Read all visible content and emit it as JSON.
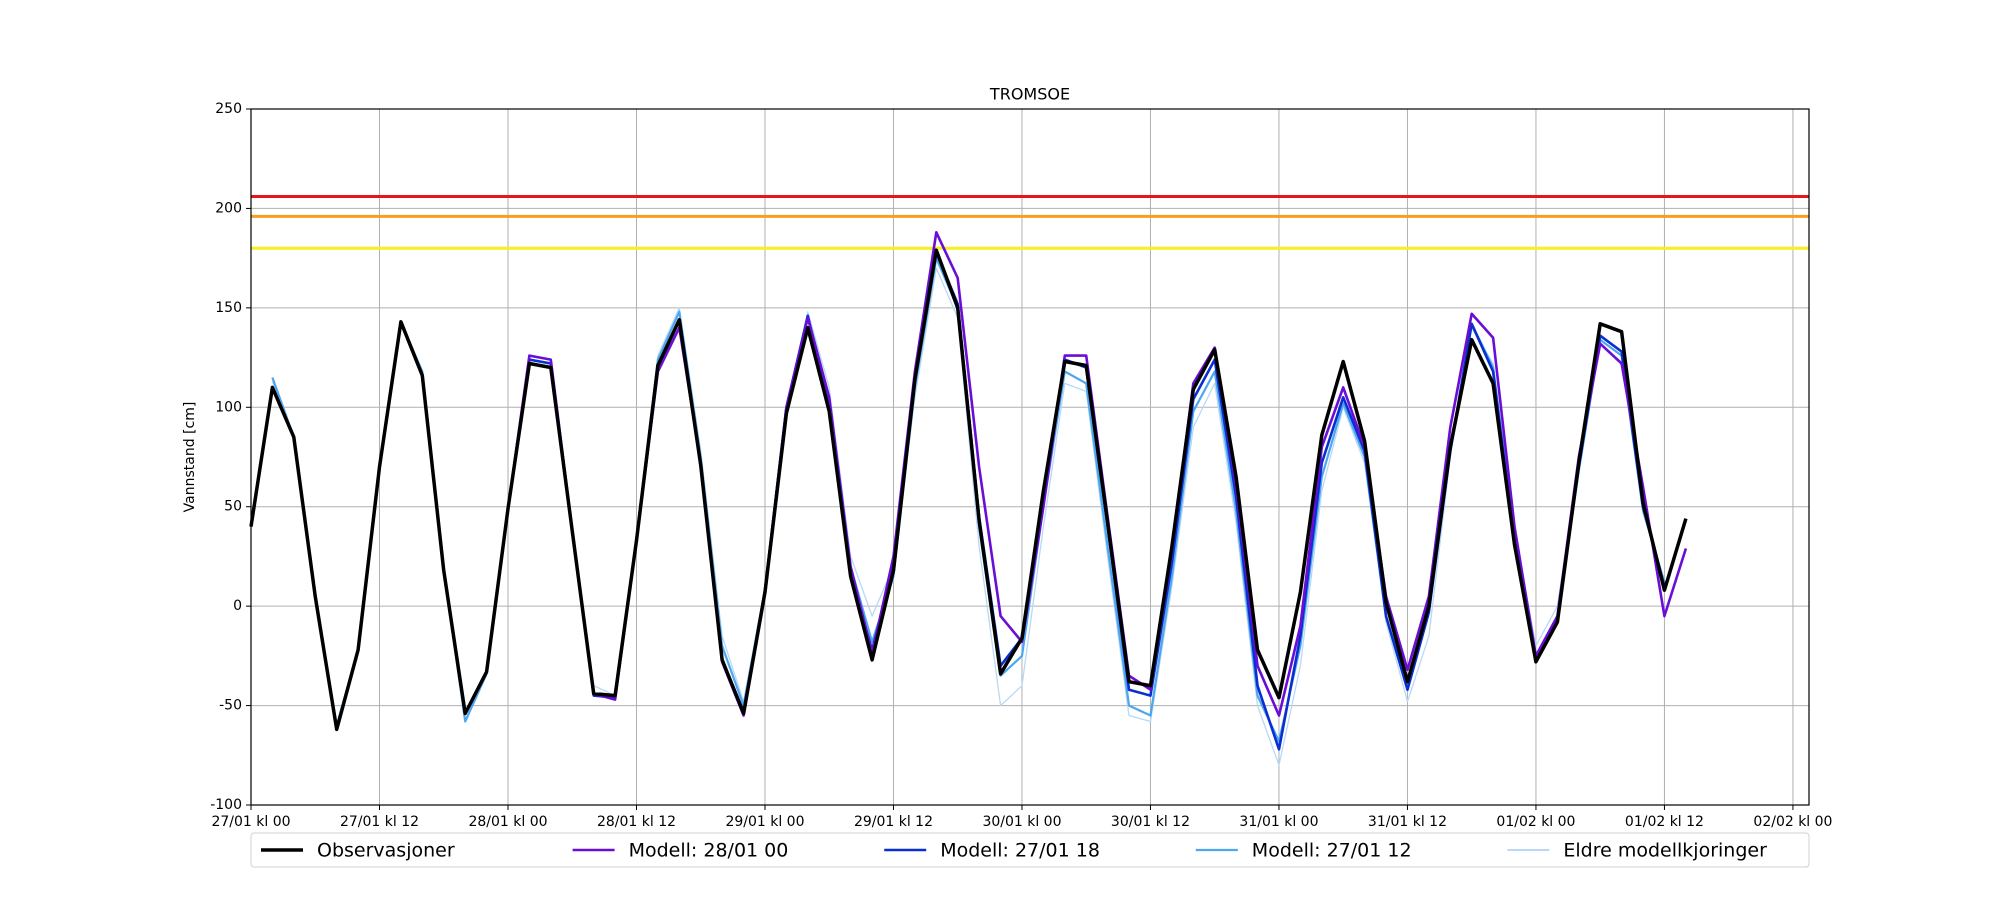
{
  "chart_data": {
    "type": "line",
    "title": "TROMSOE",
    "ylabel": "Vannstand [cm]",
    "x": [
      0,
      2,
      4,
      6,
      8,
      10,
      12,
      14,
      16,
      18,
      20,
      22,
      24,
      26,
      28,
      30,
      32,
      34,
      36,
      38,
      40,
      42,
      44,
      46,
      48,
      50,
      52,
      54,
      56,
      58,
      60,
      62,
      64,
      66,
      68,
      70,
      72,
      74,
      76,
      78,
      80,
      82,
      84,
      86,
      88,
      90,
      92,
      94,
      96,
      98,
      100,
      102,
      104,
      106,
      108,
      110,
      112,
      114,
      116,
      118,
      120,
      122,
      124,
      126,
      128,
      130,
      132,
      134
    ],
    "xlim": [
      0,
      145.5
    ],
    "xticks": [
      {
        "value": 0,
        "label": "27/01 kl 00"
      },
      {
        "value": 12,
        "label": "27/01 kl 12"
      },
      {
        "value": 24,
        "label": "28/01 kl 00"
      },
      {
        "value": 36,
        "label": "28/01 kl 12"
      },
      {
        "value": 48,
        "label": "29/01 kl 00"
      },
      {
        "value": 60,
        "label": "29/01 kl 12"
      },
      {
        "value": 72,
        "label": "30/01 kl 00"
      },
      {
        "value": 84,
        "label": "30/01 kl 12"
      },
      {
        "value": 96,
        "label": "31/01 kl 00"
      },
      {
        "value": 108,
        "label": "31/01 kl 12"
      },
      {
        "value": 120,
        "label": "01/02 kl 00"
      },
      {
        "value": 132,
        "label": "01/02 kl 12"
      },
      {
        "value": 144,
        "label": "02/02 kl 00"
      }
    ],
    "ylim": [
      -100,
      250
    ],
    "yticks": [
      -100,
      -50,
      0,
      50,
      100,
      150,
      200,
      250
    ],
    "grid": true,
    "legend": "bottom",
    "reference_lines": [
      {
        "value": 206,
        "color": "#e8141c"
      },
      {
        "value": 196,
        "color": "#f5a01a"
      },
      {
        "value": 180,
        "color": "#f5f01e"
      }
    ],
    "series": [
      {
        "name": "Observasjoner",
        "color": "#000000",
        "values": [
          40,
          110,
          85,
          5,
          -62,
          -22,
          70,
          143,
          116,
          18,
          -54,
          -33,
          49,
          122,
          120,
          38,
          -44,
          -45,
          33,
          121,
          144,
          71,
          -27,
          -54,
          7,
          97,
          140,
          98,
          15,
          -27,
          18,
          114,
          179,
          150,
          43,
          -34,
          -16,
          58,
          123,
          121,
          42,
          -38,
          -40,
          30,
          109,
          129,
          65,
          -22,
          -46,
          7,
          86,
          123,
          83,
          2,
          -38,
          0,
          80,
          134,
          112,
          31,
          -28,
          -8,
          72,
          142,
          138,
          52,
          8,
          44
        ]
      },
      {
        "name": "Modell: 28/01 00",
        "color": "#6a0dd6",
        "values": [
          null,
          null,
          null,
          null,
          null,
          null,
          null,
          null,
          null,
          null,
          null,
          null,
          49,
          126,
          124,
          38,
          -44,
          -47,
          33,
          118,
          140,
          72,
          -28,
          -55,
          8,
          100,
          145,
          105,
          20,
          -24,
          25,
          118,
          188,
          165,
          70,
          -5,
          -18,
          50,
          126,
          126,
          45,
          -35,
          -42,
          28,
          112,
          130,
          60,
          -30,
          -55,
          -10,
          80,
          110,
          80,
          5,
          -32,
          5,
          90,
          147,
          135,
          40,
          -25,
          -5,
          75,
          132,
          122,
          60,
          -5,
          29
        ]
      },
      {
        "name": "Modell: 27/01 18",
        "color": "#0a2fd0",
        "values": [
          null,
          null,
          null,
          null,
          null,
          null,
          null,
          null,
          null,
          18,
          -54,
          -33,
          49,
          124,
          122,
          38,
          -45,
          -46,
          33,
          120,
          144,
          72,
          -27,
          -53,
          8,
          100,
          146,
          100,
          15,
          -22,
          20,
          116,
          178,
          152,
          45,
          -30,
          -16,
          55,
          124,
          120,
          40,
          -42,
          -45,
          22,
          104,
          124,
          55,
          -40,
          -72,
          -15,
          72,
          105,
          78,
          -5,
          -42,
          -3,
          78,
          142,
          118,
          32,
          -27,
          -6,
          70,
          136,
          128,
          50,
          10,
          null
        ]
      },
      {
        "name": "Modell: 27/01 12",
        "color": "#4da6f0",
        "values": [
          null,
          115,
          85,
          5,
          -60,
          -22,
          70,
          143,
          118,
          18,
          -58,
          -34,
          49,
          124,
          122,
          38,
          -44,
          -46,
          35,
          124,
          148,
          75,
          -20,
          -50,
          8,
          100,
          146,
          105,
          20,
          -18,
          15,
          110,
          175,
          150,
          40,
          -35,
          -25,
          50,
          118,
          112,
          30,
          -50,
          -55,
          15,
          98,
          118,
          48,
          -45,
          -68,
          -20,
          65,
          102,
          75,
          -5,
          -42,
          -3,
          78,
          142,
          120,
          35,
          -25,
          -5,
          68,
          134,
          126,
          48,
          12,
          null
        ]
      },
      {
        "name": "Eldre modellkjoringer",
        "color": "#b8d8f5",
        "values": [
          null,
          113,
          85,
          5,
          -60,
          -22,
          70,
          143,
          118,
          18,
          -58,
          -34,
          49,
          126,
          124,
          40,
          -40,
          -45,
          35,
          126,
          150,
          78,
          -15,
          -48,
          10,
          100,
          148,
          110,
          25,
          -5,
          20,
          105,
          170,
          145,
          30,
          -50,
          -40,
          40,
          112,
          108,
          25,
          -55,
          -58,
          10,
          90,
          112,
          42,
          -50,
          -80,
          -30,
          58,
          100,
          72,
          -8,
          -48,
          -15,
          75,
          140,
          122,
          38,
          -20,
          0,
          70,
          null,
          null,
          null,
          null,
          null
        ]
      }
    ]
  }
}
